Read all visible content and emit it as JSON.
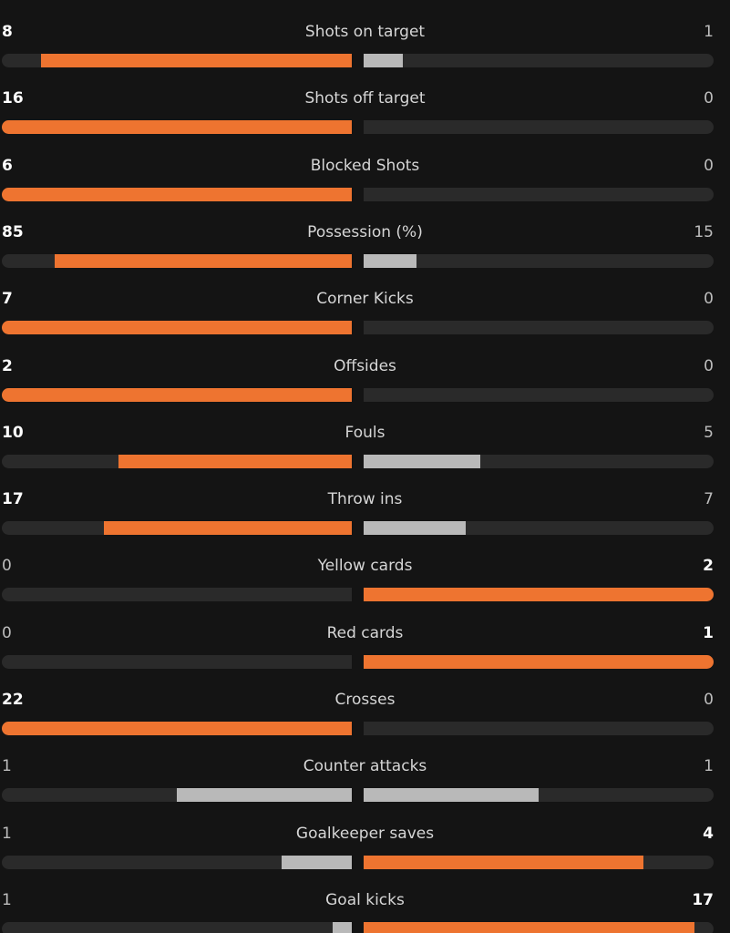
{
  "stats": [
    {
      "label": "Shots on target",
      "home": 8,
      "away": 1
    },
    {
      "label": "Shots off target",
      "home": 16,
      "away": 0
    },
    {
      "label": "Blocked Shots",
      "home": 6,
      "away": 0
    },
    {
      "label": "Possession (%)",
      "home": 85,
      "away": 15
    },
    {
      "label": "Corner Kicks",
      "home": 7,
      "away": 0
    },
    {
      "label": "Offsides",
      "home": 2,
      "away": 0
    },
    {
      "label": "Fouls",
      "home": 10,
      "away": 5
    },
    {
      "label": "Throw ins",
      "home": 17,
      "away": 7
    },
    {
      "label": "Yellow cards",
      "home": 0,
      "away": 2
    },
    {
      "label": "Red cards",
      "home": 0,
      "away": 1
    },
    {
      "label": "Crosses",
      "home": 22,
      "away": 0
    },
    {
      "label": "Counter attacks",
      "home": 1,
      "away": 1
    },
    {
      "label": "Goalkeeper saves",
      "home": 1,
      "away": 4
    },
    {
      "label": "Goal kicks",
      "home": 1,
      "away": 17
    }
  ]
}
